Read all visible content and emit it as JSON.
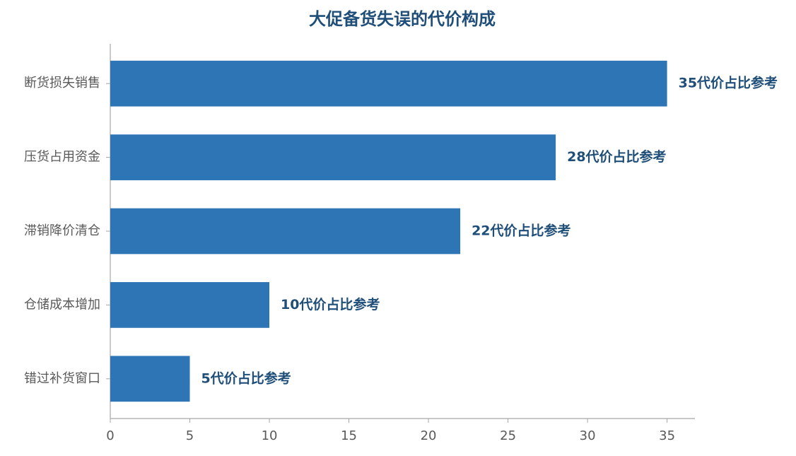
{
  "chart_data": {
    "type": "bar",
    "orientation": "horizontal",
    "title": "大促备货失误的代价构成",
    "categories": [
      "断货损失销售",
      "压货占用资金",
      "滞销降价清仓",
      "仓储成本增加",
      "错过补货窗口"
    ],
    "values": [
      35,
      28,
      22,
      10,
      5
    ],
    "value_labels": [
      "35代价占比参考",
      "28代价占比参考",
      "22代价占比参考",
      "10代价占比参考",
      "5代价占比参考"
    ],
    "color": "#2e75b6",
    "xlim": [
      0,
      36.75
    ],
    "xticks": [
      0,
      5,
      10,
      15,
      20,
      25,
      30,
      35
    ],
    "grid": false
  }
}
